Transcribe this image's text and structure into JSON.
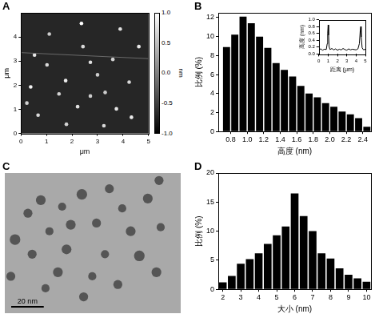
{
  "chart_data": [
    {
      "panel": "A",
      "type": "scatter",
      "x_label": "μm",
      "y_label": "μm",
      "xlim": [
        0,
        5
      ],
      "xticks": [
        0,
        1,
        2,
        3,
        4,
        5
      ],
      "ylim": [
        0,
        5
      ],
      "yticks": [
        0,
        1,
        2,
        3,
        4
      ],
      "grid": false,
      "particles": {
        "x": [
          2.37,
          0.53,
          1.02,
          2.72,
          3.6,
          1.75,
          3.0,
          4.24,
          0.38,
          1.49,
          2.22,
          2.72,
          3.74,
          0.67,
          4.33,
          1.78,
          3.25,
          1.11,
          3.89,
          4.62,
          0.23,
          2.43,
          3.3
        ],
        "y": [
          4.56,
          3.25,
          2.84,
          2.95,
          3.07,
          2.19,
          2.43,
          2.13,
          1.93,
          1.64,
          1.11,
          1.55,
          1.02,
          0.76,
          0.67,
          0.38,
          0.32,
          4.12,
          4.33,
          3.6,
          1.26,
          3.6,
          1.7
        ],
        "height": [
          1.0,
          0.8,
          0.7,
          0.75,
          0.65,
          0.85,
          0.6,
          0.7,
          0.9,
          0.65,
          0.75,
          0.6,
          0.8,
          0.7,
          0.85,
          0.65,
          0.7,
          0.6,
          0.75,
          0.8,
          0.65,
          0.7,
          0.6
        ]
      },
      "profile_line": {
        "x": [
          0,
          5
        ],
        "y": [
          3.35,
          3.1
        ]
      },
      "colorbar": {
        "label": "nm",
        "range": [
          -1,
          1
        ],
        "ticks": [
          {
            "value": -1,
            "label": "-1.0"
          },
          -0.5,
          {
            "value": 0,
            "label": "0.0"
          },
          0.5,
          {
            "value": 1,
            "label": "1.0"
          }
        ]
      }
    },
    {
      "panel": "B",
      "type": "histogram",
      "x_label": "高度 (nm)",
      "y_label": "比例 (%)",
      "bins": [
        0.7,
        0.8,
        0.9,
        1.0,
        1.1,
        1.2,
        1.3,
        1.4,
        1.5,
        1.6,
        1.7,
        1.8,
        1.9,
        2.0,
        2.1,
        2.2,
        2.3,
        2.4,
        2.5
      ],
      "values": [
        8.9,
        10.2,
        12.1,
        11.4,
        10.0,
        8.8,
        7.2,
        6.5,
        5.8,
        4.8,
        4.0,
        3.6,
        3.0,
        2.6,
        2.1,
        1.8,
        1.4,
        0.5
      ],
      "color": "#000000",
      "xlim": [
        0.65,
        2.5
      ],
      "xticks": [
        0.8,
        {
          "value": 1,
          "label": "1.0"
        },
        1.2,
        1.4,
        1.6,
        1.8,
        {
          "value": 2,
          "label": "2.0"
        },
        2.2,
        2.4
      ],
      "ylim": [
        0,
        12.5
      ],
      "yticks": [
        0,
        2,
        4,
        6,
        8,
        10,
        12
      ],
      "grid": false,
      "inset": {
        "type": "line",
        "x_label": "距离 (μm)",
        "y_label": "高度 (nm)",
        "color": "#000000",
        "x": [
          0,
          0.2,
          0.4,
          0.6,
          0.8,
          0.9,
          0.95,
          1.0,
          1.05,
          1.1,
          1.2,
          1.4,
          1.6,
          1.8,
          2.0,
          2.2,
          2.4,
          2.6,
          2.8,
          3.0,
          3.2,
          3.4,
          3.6,
          3.8,
          4.0,
          4.2,
          4.35,
          4.45,
          4.5,
          4.55,
          4.65,
          4.8,
          5.0
        ],
        "values": [
          0.12,
          0.15,
          0.11,
          0.14,
          0.13,
          0.3,
          0.6,
          0.85,
          0.55,
          0.22,
          0.13,
          0.16,
          0.12,
          0.15,
          0.11,
          0.14,
          0.12,
          0.16,
          0.13,
          0.11,
          0.15,
          0.12,
          0.14,
          0.13,
          0.12,
          0.15,
          0.3,
          0.7,
          0.8,
          0.5,
          0.18,
          0.12,
          0.14
        ],
        "xlim": [
          0,
          5
        ],
        "xticks": [
          0,
          1,
          2,
          3,
          4,
          5
        ],
        "ylim": [
          0,
          1
        ],
        "yticks": [
          {
            "value": 0,
            "label": "0.0"
          },
          0.2,
          0.4,
          0.6,
          0.8,
          {
            "value": 1,
            "label": "1.0"
          }
        ],
        "grid": false
      }
    },
    {
      "panel": "C",
      "type": "scatter",
      "tick_labels": false,
      "color": "#555555",
      "xlim": [
        0,
        108
      ],
      "ylim": [
        0,
        90
      ],
      "particles": {
        "x": [
          14.2,
          22.1,
          35.2,
          47.3,
          64.2,
          72.1,
          87.8,
          94.7,
          6.3,
          27.4,
          40.5,
          56.3,
          77.3,
          95.7,
          16.8,
          37.9,
          61.5,
          82.6,
          3.7,
          32.6,
          53.7,
          69.4,
          93.1,
          25,
          48.4
        ],
        "y": [
          64.2,
          72.6,
          68.4,
          76.3,
          79.9,
          67.3,
          73.6,
          85.2,
          47.3,
          52.6,
          56.8,
          57.9,
          52.6,
          55.2,
          37.9,
          41.0,
          37.9,
          36.8,
          23.7,
          26.3,
          23.7,
          18.4,
          26.3,
          16,
          10.5
        ],
        "size": [
          5.5,
          6,
          5,
          6.5,
          5.5,
          5,
          6,
          5.5,
          6.5,
          5,
          6,
          5.5,
          6,
          5,
          5.5,
          6,
          5,
          6.5,
          5.5,
          6,
          5,
          5.5,
          6,
          5,
          5.5
        ]
      },
      "scale_bar": {
        "value": 20,
        "label": "20 nm"
      }
    },
    {
      "panel": "D",
      "type": "histogram",
      "x_label": "大小 (nm)",
      "y_label": "比例 (%)",
      "bins": [
        1.75,
        2.25,
        2.75,
        3.25,
        3.75,
        4.25,
        4.75,
        5.25,
        5.75,
        6.25,
        6.75,
        7.25,
        7.75,
        8.25,
        8.75,
        9.25,
        9.75,
        10.25
      ],
      "values": [
        1.2,
        2.3,
        4.4,
        5.2,
        6.2,
        7.8,
        9.3,
        10.8,
        16.5,
        12.6,
        10.0,
        6.2,
        5.3,
        3.6,
        2.5,
        1.9,
        1.3
      ],
      "color": "#000000",
      "xlim": [
        1.75,
        10.25
      ],
      "xticks": [
        2,
        3,
        4,
        5,
        6,
        7,
        8,
        9,
        10
      ],
      "ylim": [
        0,
        20
      ],
      "yticks": [
        0,
        5,
        10,
        15,
        20
      ],
      "grid": false
    }
  ]
}
